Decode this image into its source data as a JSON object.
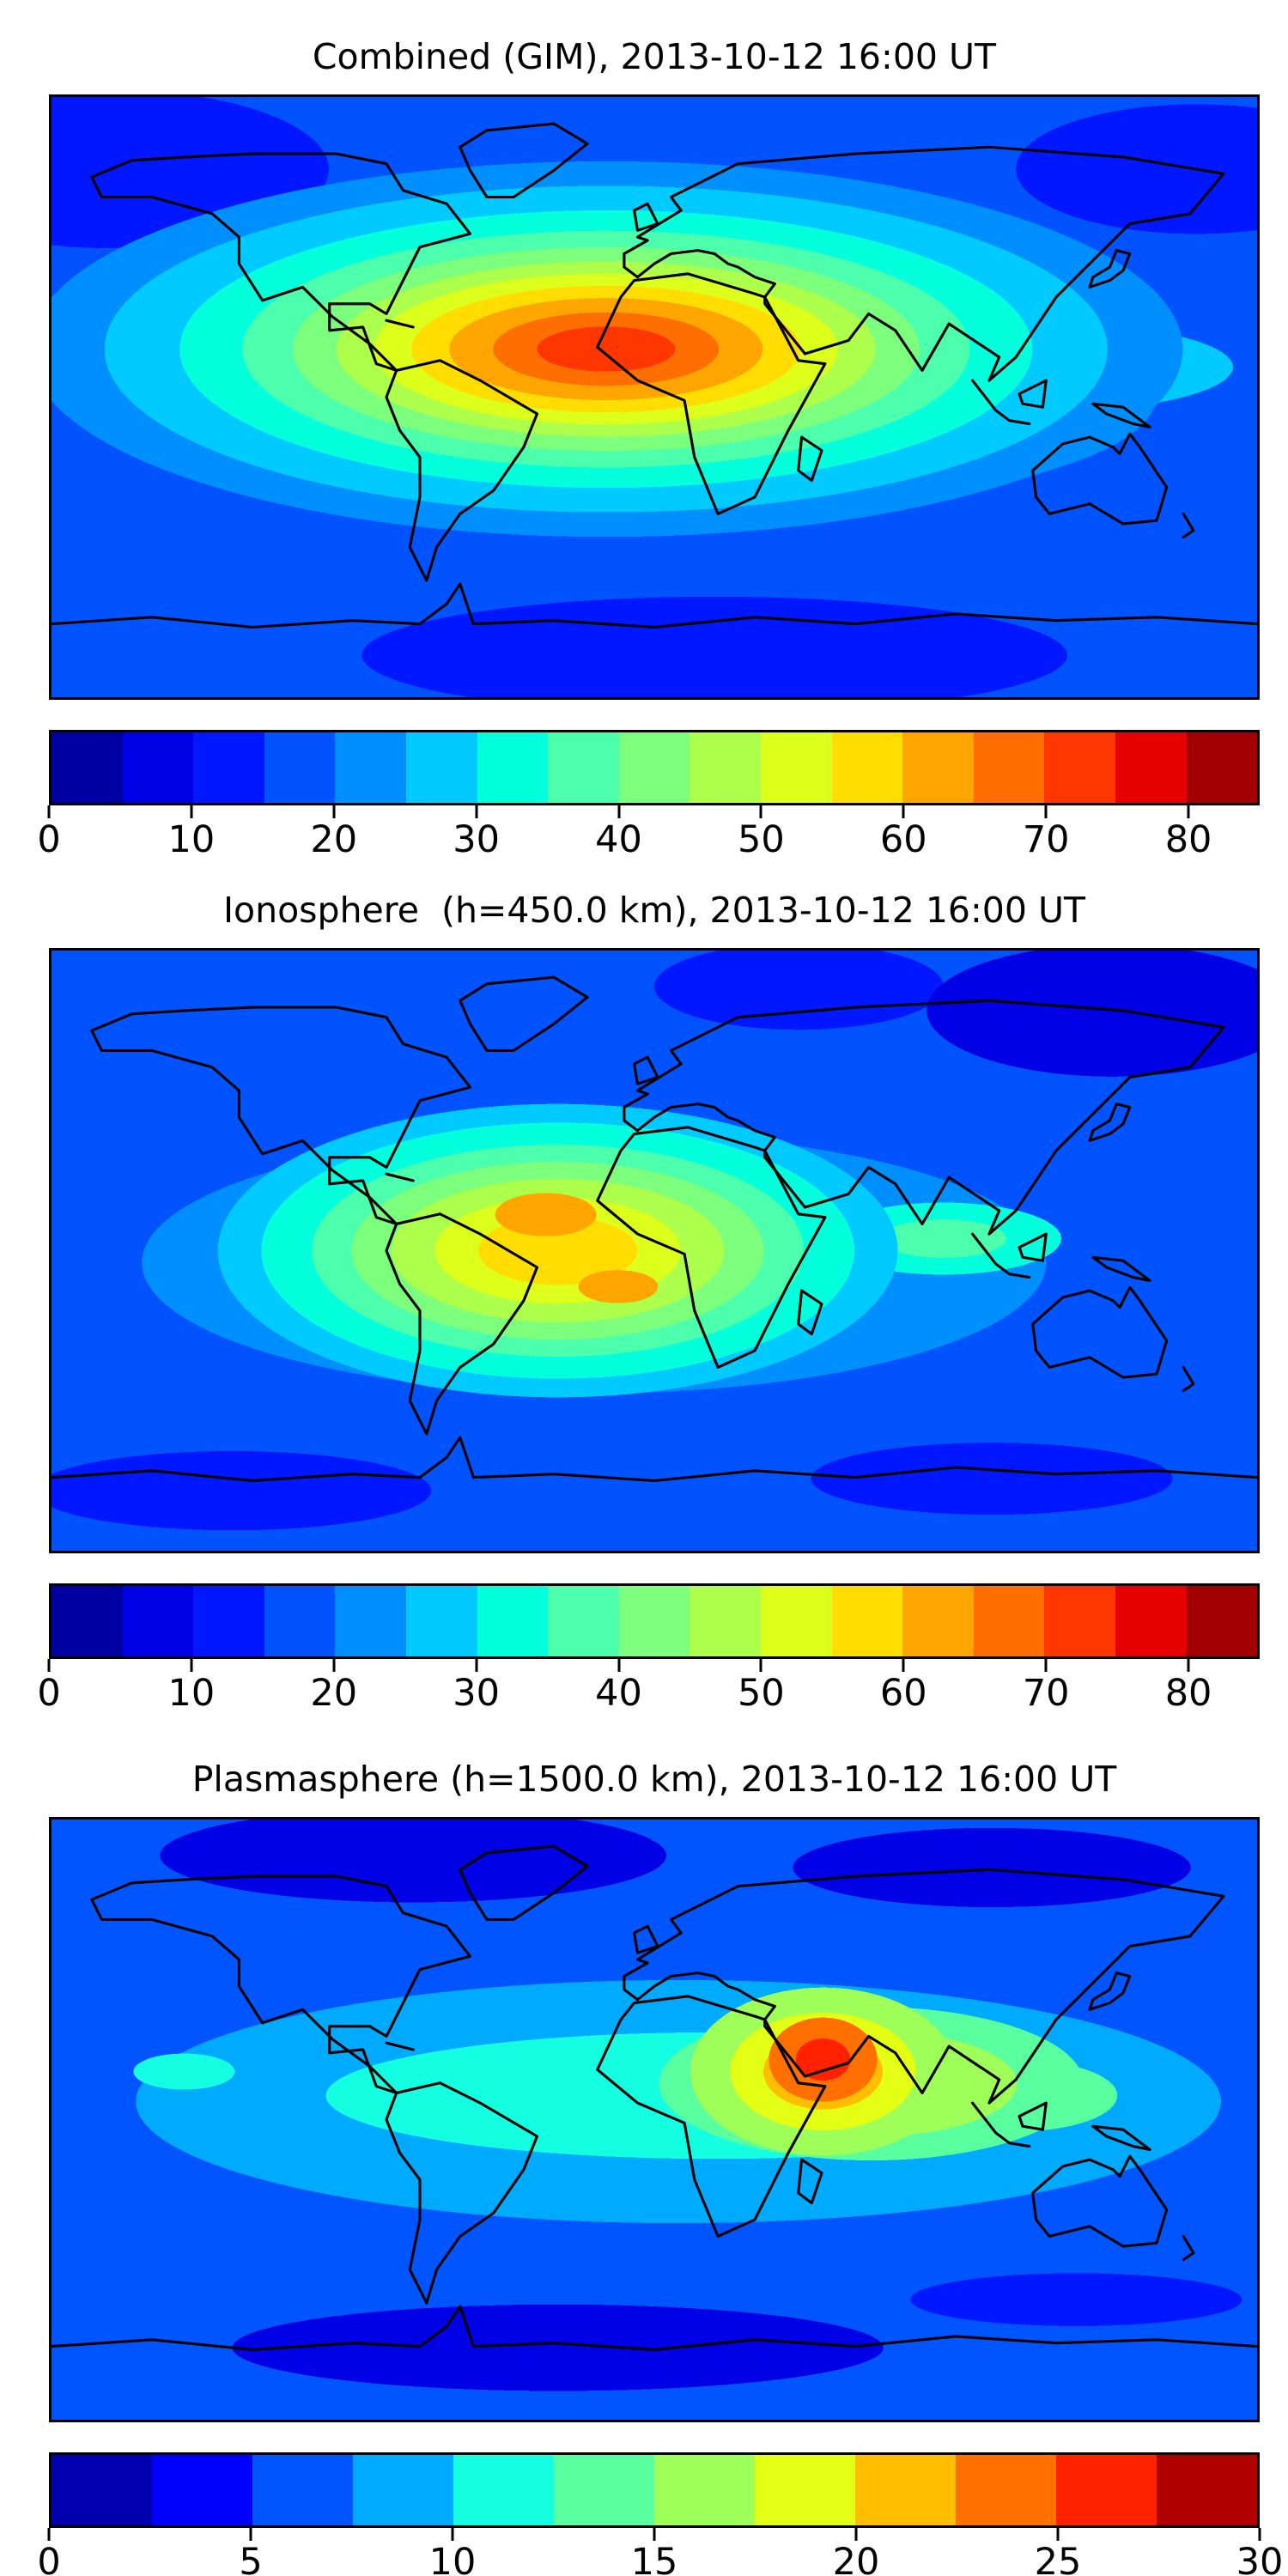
{
  "figure": {
    "background_color": "#ffffff",
    "panels_count": 3,
    "projection_note": "equirectangular world maps with black coastlines, no axis ticks or labels"
  },
  "panels": [
    {
      "title": "Combined (GIM), 2013-10-12 16:00 UT",
      "colorbar": {
        "min": 0,
        "max": 85,
        "level_step": 5,
        "tick_values": [
          0,
          10,
          20,
          30,
          40,
          50,
          60,
          70,
          80
        ],
        "tick_labels": [
          "0",
          "10",
          "20",
          "30",
          "40",
          "50",
          "60",
          "70",
          "80"
        ],
        "segment_colors": [
          "#0000A2",
          "#0000E6",
          "#0017FF",
          "#0053FF",
          "#008FFF",
          "#00CAFF",
          "#03FFDC",
          "#4BFFAC",
          "#7CFF7C",
          "#ACFF4B",
          "#DCFF1B",
          "#FFDD00",
          "#FFA500",
          "#FF6E00",
          "#FF3600",
          "#E60000",
          "#A20000"
        ]
      }
    },
    {
      "title": "Ionosphere  (h=450.0 km), 2013-10-12 16:00 UT",
      "colorbar": {
        "min": 0,
        "max": 85,
        "level_step": 5,
        "tick_values": [
          0,
          10,
          20,
          30,
          40,
          50,
          60,
          70,
          80
        ],
        "tick_labels": [
          "0",
          "10",
          "20",
          "30",
          "40",
          "50",
          "60",
          "70",
          "80"
        ],
        "segment_colors": [
          "#0000A2",
          "#0000E6",
          "#0017FF",
          "#0053FF",
          "#008FFF",
          "#00CAFF",
          "#03FFDC",
          "#4BFFAC",
          "#7CFF7C",
          "#ACFF4B",
          "#DCFF1B",
          "#FFDD00",
          "#FFA500",
          "#FF6E00",
          "#FF3600",
          "#E60000",
          "#A20000"
        ]
      }
    },
    {
      "title": "Plasmasphere (h=1500.0 km), 2013-10-12 16:00 UT",
      "colorbar": {
        "min": 0,
        "max": 30,
        "level_step": 2.5,
        "tick_values": [
          0,
          5,
          10,
          15,
          20,
          25,
          30
        ],
        "tick_labels": [
          "0",
          "5",
          "10",
          "15",
          "20",
          "25",
          "30"
        ],
        "segment_colors": [
          "#0000B0",
          "#0000FF",
          "#0055FF",
          "#00AAFF",
          "#14FFE2",
          "#59FF9E",
          "#9EFF59",
          "#E2FF14",
          "#FFBE00",
          "#FF7000",
          "#FF2100",
          "#B00000"
        ]
      }
    }
  ],
  "chart_data": [
    {
      "type": "heatmap",
      "title": "Combined (GIM), 2013-10-12 16:00 UT",
      "colormap": "jet (discrete filled contours)",
      "levels": {
        "min": 0,
        "max": 85,
        "step": 5
      },
      "colorbar_ticks": [
        0,
        10,
        20,
        30,
        40,
        50,
        60,
        70,
        80
      ],
      "axes": {
        "x_range_lon": [
          -180,
          180
        ],
        "y_range_lat": [
          -90,
          90
        ],
        "ticks_shown": false,
        "grid": false
      },
      "legend_position": "horizontal colorbar below map",
      "features": [
        {
          "region": "equatorial Atlantic / NE South America / West Africa",
          "approx_lon_lat": [
            -30,
            0
          ],
          "value_estimate": "75-85 (red-orange maximum, two lobes over NE Brazil and West Africa)"
        },
        {
          "region": "equatorial band east through Indian Ocean to Indonesia",
          "approx_lon_lat": [
            70,
            0
          ],
          "value_estimate": "40-55 (yellow-green)"
        },
        {
          "region": "mid-latitude oceans and southern Pacific",
          "value_estimate": "20-35 (cyan / light blue)"
        },
        {
          "region": "high latitudes, northern Asia, polar regions",
          "value_estimate": "5-15 (blue / dark blue)"
        }
      ]
    },
    {
      "type": "heatmap",
      "title": "Ionosphere  (h=450.0 km), 2013-10-12 16:00 UT",
      "colormap": "jet (discrete filled contours)",
      "levels": {
        "min": 0,
        "max": 85,
        "step": 5
      },
      "colorbar_ticks": [
        0,
        10,
        20,
        30,
        40,
        50,
        60,
        70,
        80
      ],
      "axes": {
        "x_range_lon": [
          -180,
          180
        ],
        "y_range_lat": [
          -90,
          90
        ],
        "ticks_shown": false,
        "grid": false
      },
      "legend_position": "horizontal colorbar below map",
      "features": [
        {
          "region": "equatorial Atlantic / NE South America",
          "approx_lon_lat": [
            -40,
            -5
          ],
          "value_estimate": "55-65 (orange maximum, two patches)"
        },
        {
          "region": "broad area South America / South Atlantic / West Africa",
          "value_estimate": "40-55 (yellow / yellow-green)"
        },
        {
          "region": "Southeast Asia secondary enhancement",
          "approx_lon_lat": [
            105,
            5
          ],
          "value_estimate": "30-40 (cyan-green)"
        },
        {
          "region": "high latitudes and central Pacific",
          "value_estimate": "5-15 (blue / dark blue)"
        }
      ]
    },
    {
      "type": "heatmap",
      "title": "Plasmasphere (h=1500.0 km), 2013-10-12 16:00 UT",
      "colormap": "jet (discrete filled contours)",
      "levels": {
        "min": 0,
        "max": 30,
        "step": 2.5
      },
      "colorbar_ticks": [
        0,
        5,
        10,
        15,
        20,
        25,
        30
      ],
      "axes": {
        "x_range_lon": [
          -180,
          180
        ],
        "y_range_lat": [
          -90,
          90
        ],
        "ticks_shown": false,
        "grid": false
      },
      "legend_position": "horizontal colorbar below map",
      "features": [
        {
          "region": "Horn of Africa / western Arabian Sea",
          "approx_lon_lat": [
            48,
            5
          ],
          "value_estimate": "25-30 (red-orange maximum)"
        },
        {
          "region": "surrounding ring over Arabia, India, East Africa, SE Asia",
          "value_estimate": "15-22.5 (yellow / green)"
        },
        {
          "region": "tropical belt around the globe",
          "value_estimate": "10-15 (cyan)"
        },
        {
          "region": "mid and high latitudes",
          "value_estimate": "2.5-7.5 (blue / dark blue)"
        }
      ]
    }
  ]
}
